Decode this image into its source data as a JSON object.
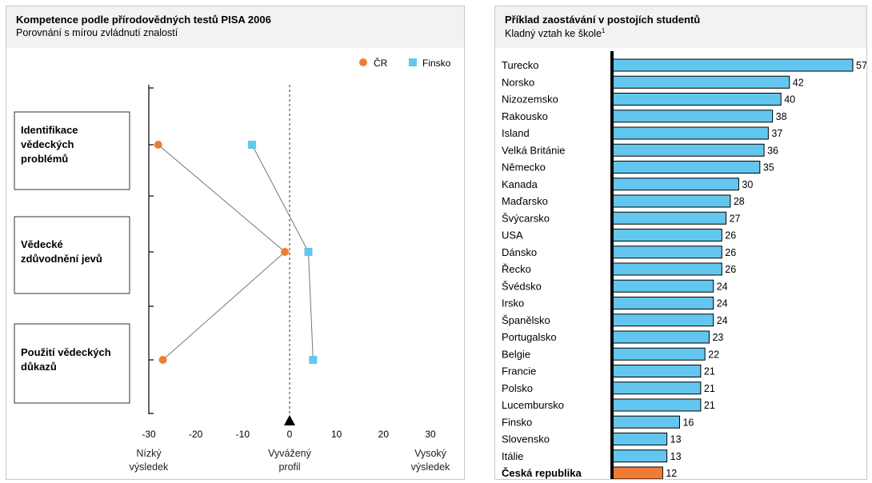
{
  "colors": {
    "cr": "#f07c33",
    "finland": "#5ec8f0",
    "bar": "#63c6ee",
    "bar_highlight": "#f07c33",
    "panel_bg": "#f2f2f2"
  },
  "left": {
    "title": "Kompetence podle přírodovědných testů PISA 2006",
    "subtitle": "Porovnání s mírou zvládnutí znalostí",
    "low_label": [
      "Nízký",
      "výsledek"
    ],
    "mid_label": [
      "Vyvážený",
      "profil"
    ],
    "high_label": [
      "Vysoký",
      "výsledek"
    ]
  },
  "right": {
    "title": "Příklad zaostávání v postojích studentů",
    "subtitle": "Kladný vztah ke škole",
    "subtitle_sup": "1"
  },
  "chart_data": [
    {
      "type": "scatter",
      "xlim": [
        -30,
        30
      ],
      "xticks": [
        -30,
        -20,
        -10,
        0,
        10,
        20,
        30
      ],
      "categories": [
        [
          "Identifikace",
          "vědeckých",
          "problémů"
        ],
        [
          "Vědecké",
          "zdůvodnění jevů"
        ],
        [
          "Použití vědeckých",
          "důkazů"
        ]
      ],
      "legend_position": "top-right",
      "series": [
        {
          "name": "ČR",
          "values": [
            -28,
            -1,
            -27
          ]
        },
        {
          "name": "Finsko",
          "values": [
            -8,
            4,
            5
          ]
        }
      ]
    },
    {
      "type": "bar",
      "orientation": "horizontal",
      "categories": [
        "Turecko",
        "Norsko",
        "Nizozemsko",
        "Rakousko",
        "Island",
        "Velká Británie",
        "Německo",
        "Kanada",
        "Maďarsko",
        "Švýcarsko",
        "USA",
        "Dánsko",
        "Řecko",
        "Švédsko",
        "Irsko",
        "Španělsko",
        "Portugalsko",
        "Belgie",
        "Francie",
        "Polsko",
        "Lucembursko",
        "Finsko",
        "Slovensko",
        "Itálie",
        "Česká republika"
      ],
      "values": [
        57,
        42,
        40,
        38,
        37,
        36,
        35,
        30,
        28,
        27,
        26,
        26,
        26,
        24,
        24,
        24,
        23,
        22,
        21,
        21,
        21,
        16,
        13,
        13,
        12
      ],
      "highlight": "Česká republika",
      "xlim": [
        0,
        57
      ]
    }
  ]
}
